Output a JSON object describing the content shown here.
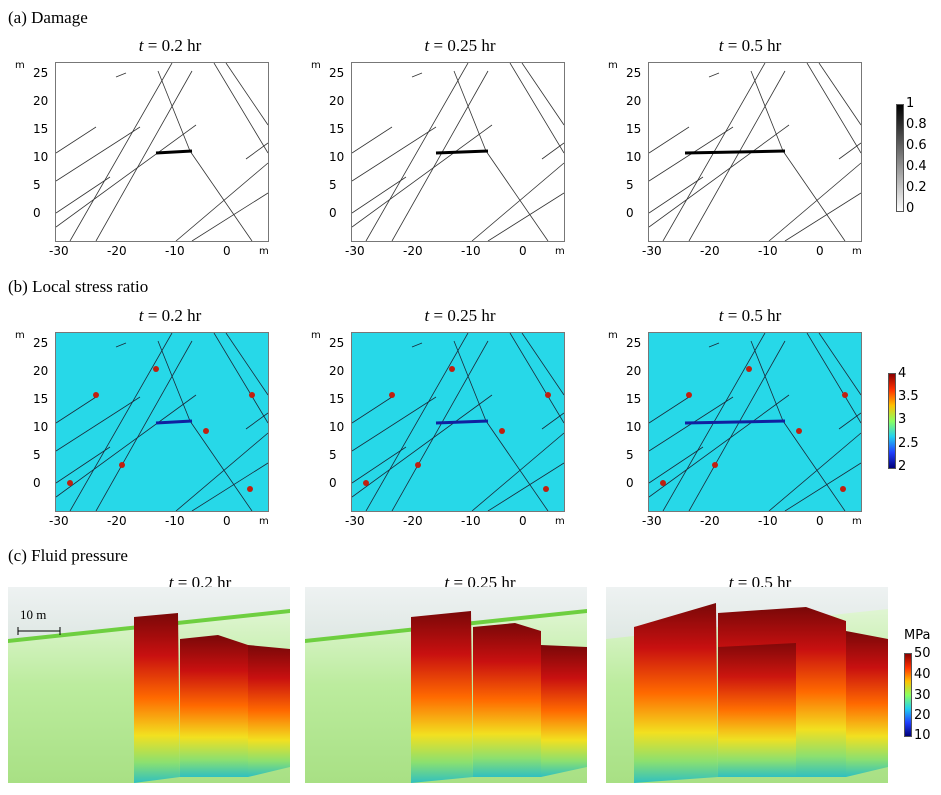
{
  "sections": {
    "a": "(a) Damage",
    "b": "(b) Local stress ratio",
    "c": "(c) Fluid pressure"
  },
  "times": [
    {
      "var": "t",
      "rest": " = 0.2 hr"
    },
    {
      "var": "t",
      "rest": " = 0.25 hr"
    },
    {
      "var": "t",
      "rest": " = 0.5 hr"
    }
  ],
  "axes": {
    "unit": "m",
    "y_ticks": [
      "25",
      "20",
      "15",
      "10",
      "5",
      "0"
    ],
    "x_ticks": [
      "-30",
      "-20",
      "-10",
      "0"
    ]
  },
  "damage_colorbar": {
    "labels": [
      "1",
      "0.8",
      "0.6",
      "0.4",
      "0.2",
      "0"
    ]
  },
  "stress_colorbar": {
    "labels": [
      "4",
      "3.5",
      "3",
      "2.5",
      "2"
    ]
  },
  "pressure_colorbar": {
    "unit": "MPa",
    "labels": [
      "50",
      "40",
      "30",
      "20",
      "10"
    ]
  },
  "scale_bar": "10 m",
  "colors": {
    "stress_bg": "#27d8e8",
    "pressure_high": "#8b0a0a",
    "pressure_low": "#c8f0b0"
  }
}
